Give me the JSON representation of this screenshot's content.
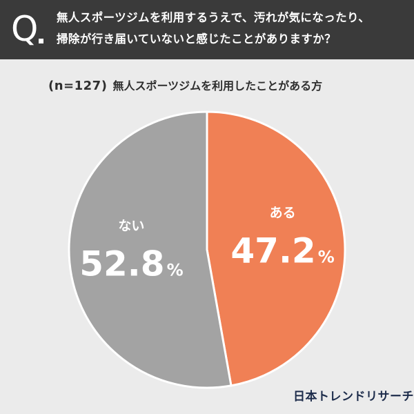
{
  "question": {
    "mark": "Q",
    "lines": [
      "無人スポーツジムを利用するうえで、汚れが気になったり、",
      "掃除が行き届いていないと感じたことがありますか？"
    ]
  },
  "subtitle": {
    "n_label": "(n=127)",
    "description": "無人スポーツジムを利用したことがある方"
  },
  "chart_data": {
    "type": "pie",
    "slices": [
      {
        "label": "ある",
        "value": 47.2,
        "color": "#f08055"
      },
      {
        "label": "ない",
        "value": 52.8,
        "color": "#a3a3a3"
      }
    ],
    "unit": "%"
  },
  "brand": {
    "logo_text": "日本トレンドリサーチ"
  }
}
